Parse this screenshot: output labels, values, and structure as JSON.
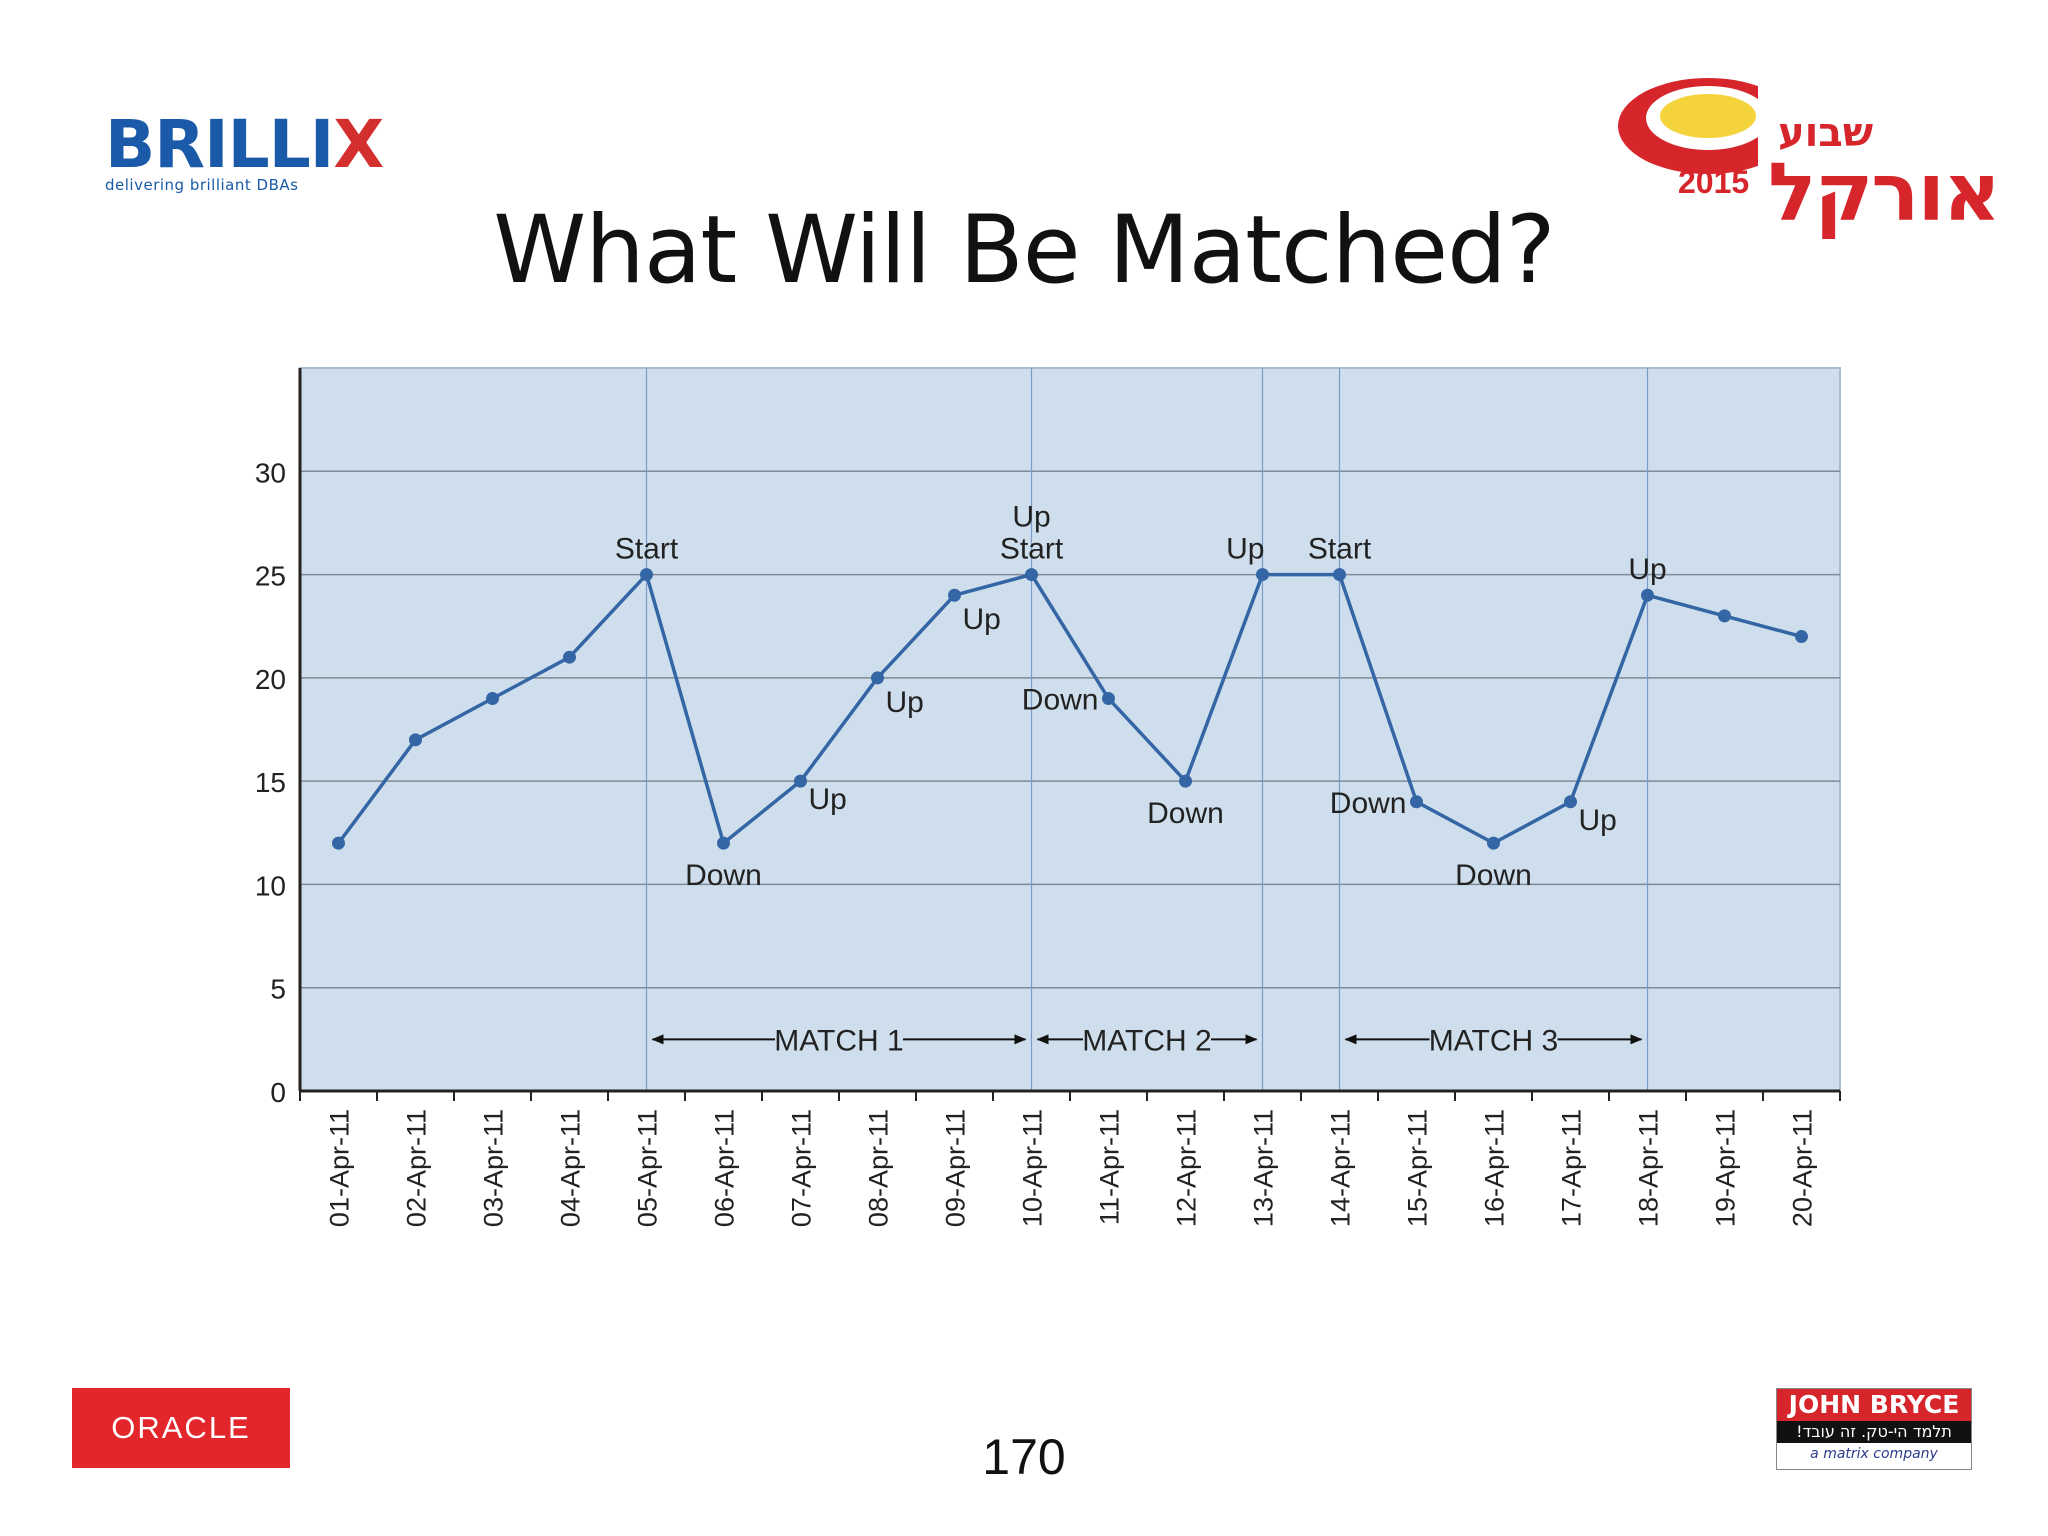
{
  "slide": {
    "title": "What Will Be Matched?",
    "page_number": "170"
  },
  "logos": {
    "brillix": {
      "name_main": "BRILLI",
      "name_accent": "X",
      "tagline": "delivering brilliant DBAs"
    },
    "oracle_week": {
      "hebrew_top": "שבוע",
      "hebrew_main": "אורקל",
      "year": "2015"
    },
    "oracle": {
      "text": "ORACLE"
    },
    "john_bryce": {
      "name": "JOHN BRYCE",
      "hebrew_tagline": "תלמד הי-טק. זה עובד!",
      "subtitle": "a matrix company"
    }
  },
  "colors": {
    "series": "#3465a4",
    "plot_bg": "#cfdeed",
    "grid": "#7f8a96"
  },
  "chart_data": {
    "type": "line",
    "title": "",
    "xlabel": "",
    "ylabel": "",
    "ylim": [
      0,
      35
    ],
    "yticks": [
      0,
      5,
      10,
      15,
      20,
      25,
      30
    ],
    "grid": true,
    "categories": [
      "01-Apr-11",
      "02-Apr-11",
      "03-Apr-11",
      "04-Apr-11",
      "05-Apr-11",
      "06-Apr-11",
      "07-Apr-11",
      "08-Apr-11",
      "09-Apr-11",
      "10-Apr-11",
      "11-Apr-11",
      "12-Apr-11",
      "13-Apr-11",
      "14-Apr-11",
      "15-Apr-11",
      "16-Apr-11",
      "17-Apr-11",
      "18-Apr-11",
      "19-Apr-11",
      "20-Apr-11"
    ],
    "values": [
      12,
      17,
      19,
      21,
      25,
      12,
      15,
      20,
      24,
      25,
      19,
      15,
      25,
      25,
      14,
      12,
      14,
      24,
      23,
      22
    ],
    "point_labels": [
      {
        "index": 4,
        "lines": [
          "Start"
        ],
        "position": "above"
      },
      {
        "index": 5,
        "lines": [
          "Down"
        ],
        "position": "below"
      },
      {
        "index": 6,
        "lines": [
          "Up"
        ],
        "position": "right"
      },
      {
        "index": 7,
        "lines": [
          "Up"
        ],
        "position": "below-right"
      },
      {
        "index": 8,
        "lines": [
          "Up"
        ],
        "position": "below-right"
      },
      {
        "index": 9,
        "lines": [
          "Up",
          "Start"
        ],
        "position": "above"
      },
      {
        "index": 10,
        "lines": [
          "Down"
        ],
        "position": "left"
      },
      {
        "index": 11,
        "lines": [
          "Down"
        ],
        "position": "below"
      },
      {
        "index": 12,
        "lines": [
          "Up"
        ],
        "position": "above-left"
      },
      {
        "index": 13,
        "lines": [
          "Start"
        ],
        "position": "above"
      },
      {
        "index": 14,
        "lines": [
          "Down"
        ],
        "position": "left"
      },
      {
        "index": 15,
        "lines": [
          "Down"
        ],
        "position": "below"
      },
      {
        "index": 16,
        "lines": [
          "Up"
        ],
        "position": "right"
      },
      {
        "index": 17,
        "lines": [
          "Up"
        ],
        "position": "above"
      }
    ],
    "vertical_markers": [
      4,
      9,
      12,
      13,
      17
    ],
    "matches": [
      {
        "label": "MATCH 1",
        "from_index": 4,
        "to_index": 9
      },
      {
        "label": "MATCH 2",
        "from_index": 9,
        "to_index": 12
      },
      {
        "label": "MATCH 3",
        "from_index": 13,
        "to_index": 17
      }
    ],
    "match_arrow_y": 2.5
  }
}
